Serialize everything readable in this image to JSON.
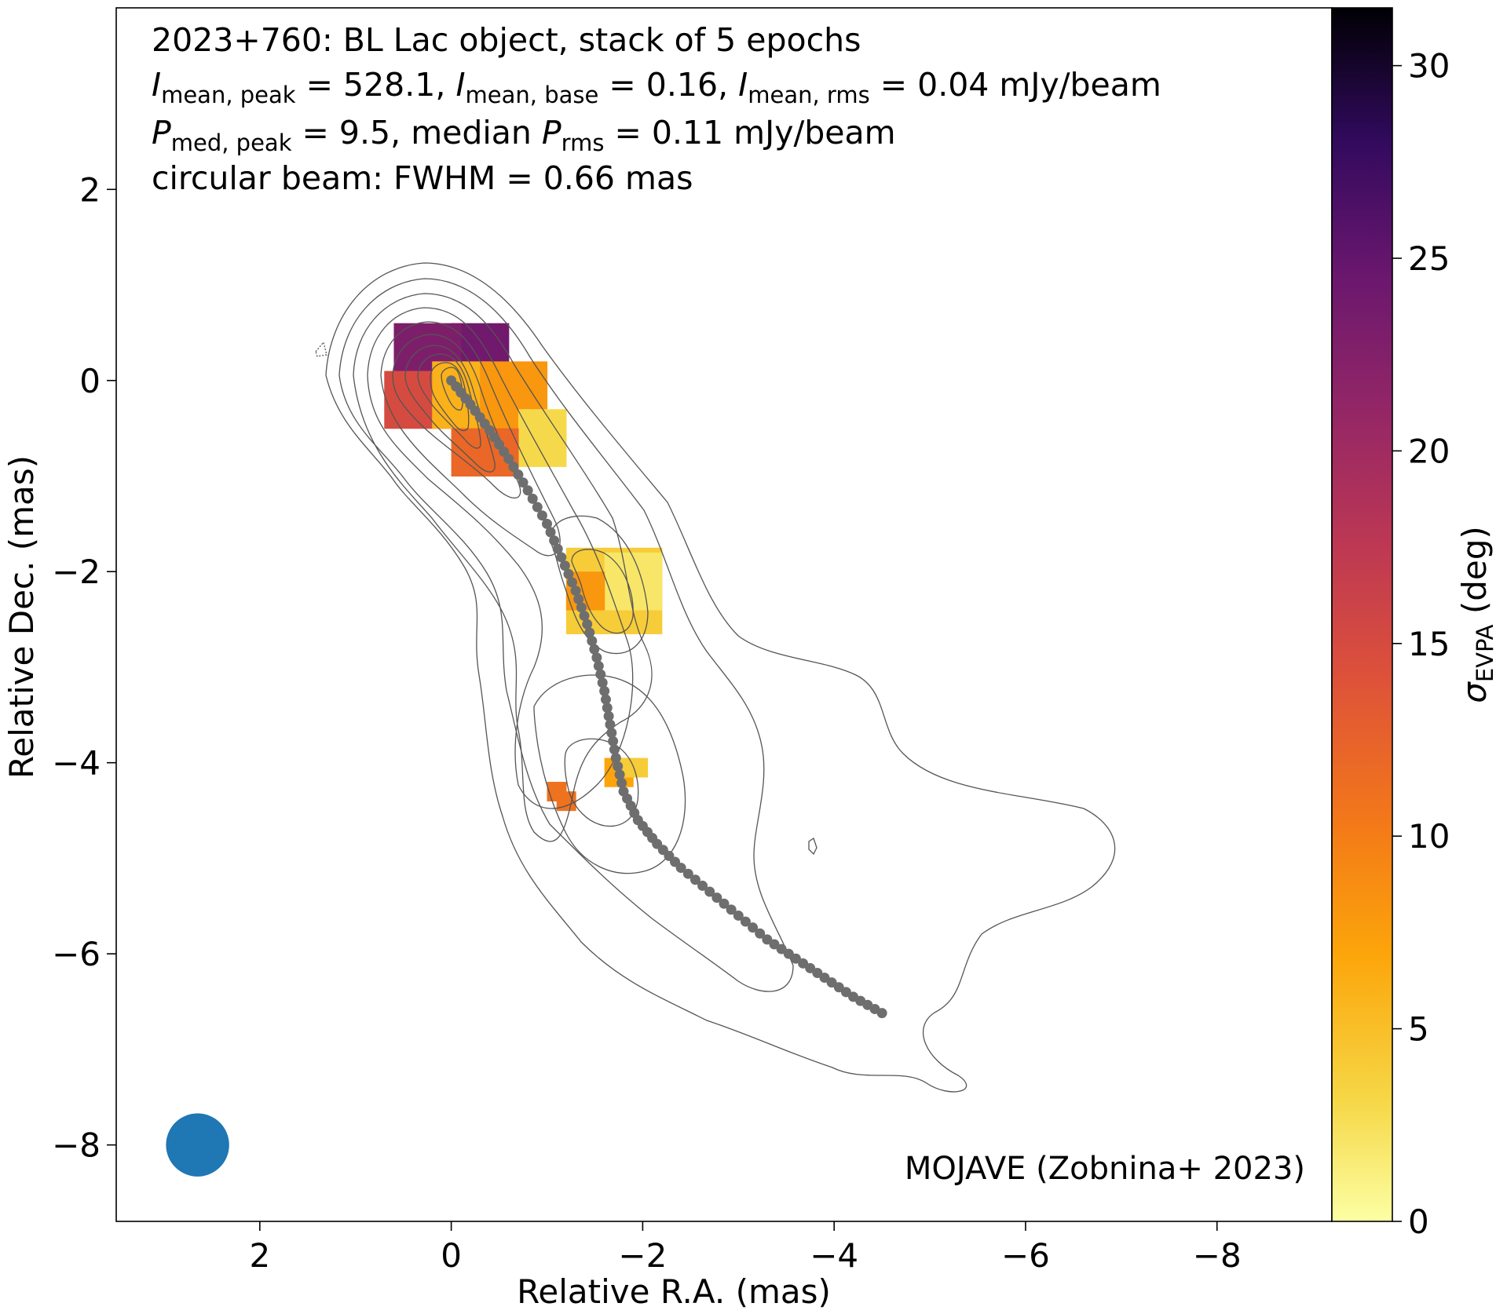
{
  "header": {
    "line1": "2023+760: BL Lac object, stack of 5 epochs",
    "line2": [
      {
        "t": "I",
        "s": "i"
      },
      {
        "t": "mean, peak",
        "s": "sub"
      },
      {
        "t": " = 528.1, "
      },
      {
        "t": "I",
        "s": "i"
      },
      {
        "t": "mean, base",
        "s": "sub"
      },
      {
        "t": " = 0.16, "
      },
      {
        "t": "I",
        "s": "i"
      },
      {
        "t": "mean, rms",
        "s": "sub"
      },
      {
        "t": " = 0.04 mJy/beam"
      }
    ],
    "line3": [
      {
        "t": "P",
        "s": "i"
      },
      {
        "t": "med, peak",
        "s": "sub"
      },
      {
        "t": " = 9.5, median "
      },
      {
        "t": "P",
        "s": "i"
      },
      {
        "t": "rms",
        "s": "sub"
      },
      {
        "t": " = 0.11 mJy/beam"
      }
    ],
    "line4": "circular beam: FWHM = 0.66 mas"
  },
  "credit": "MOJAVE (Zobnina+ 2023)",
  "colors": {
    "ridge": "#6e6e6e",
    "contour": "#555555",
    "beam": "#1f77b4"
  },
  "chart_data": {
    "type": "heatmap",
    "xlabel": "Relative R.A. (mas)",
    "ylabel": "Relative Dec. (mas)",
    "xlim": [
      3.5,
      -9.2
    ],
    "ylim": [
      -8.8,
      3.9
    ],
    "xticks": [
      2,
      0,
      -2,
      -4,
      -6,
      -8
    ],
    "xtick_labels": [
      "2",
      "0",
      "−2",
      "−4",
      "−6",
      "−8"
    ],
    "yticks": [
      2,
      0,
      -2,
      -4,
      -6,
      -8
    ],
    "ytick_labels": [
      "2",
      "0",
      "−2",
      "−4",
      "−6",
      "−8"
    ],
    "colorbar": {
      "label_symbol": "σ",
      "label_sub": "EVPA",
      "label_unit": " (deg)",
      "range": [
        0,
        31.5
      ],
      "ticks": [
        0,
        5,
        10,
        15,
        20,
        25,
        30
      ],
      "tick_labels": [
        "0",
        "5",
        "10",
        "15",
        "20",
        "25",
        "30"
      ],
      "colormap": "inferno_r"
    },
    "beam": {
      "x": 2.65,
      "y": -8.0,
      "fwhm_mas": 0.66
    },
    "ridge_line": {
      "x": [
        0.0,
        -0.2,
        -0.4,
        -0.6,
        -0.8,
        -1.0,
        -1.15,
        -1.3,
        -1.42,
        -1.52,
        -1.6,
        -1.66,
        -1.72,
        -1.8,
        -1.95,
        -2.15,
        -2.4,
        -2.7,
        -3.0,
        -3.3,
        -3.6,
        -3.9,
        -4.2,
        -4.5
      ],
      "y": [
        0.0,
        -0.25,
        -0.52,
        -0.82,
        -1.15,
        -1.5,
        -1.85,
        -2.2,
        -2.55,
        -2.9,
        -3.25,
        -3.6,
        -3.95,
        -4.3,
        -4.6,
        -4.85,
        -5.1,
        -5.35,
        -5.6,
        -5.85,
        -6.05,
        -6.25,
        -6.45,
        -6.62
      ]
    },
    "polarization_pixels": [
      {
        "x_range": [
          0.0,
          -0.5
        ],
        "y_range": [
          0.6,
          0.1
        ],
        "value": 24
      },
      {
        "x_range": [
          0.6,
          0.0
        ],
        "y_range": [
          0.6,
          0.0
        ],
        "value": 23
      },
      {
        "x_range": [
          0.7,
          0.1
        ],
        "y_range": [
          0.1,
          -0.45
        ],
        "value": 15
      },
      {
        "x_range": [
          0.2,
          -0.3
        ],
        "y_range": [
          0.2,
          -0.4
        ],
        "value": 6
      },
      {
        "x_range": [
          -0.3,
          -0.9
        ],
        "y_range": [
          0.2,
          -0.6
        ],
        "value": 8
      },
      {
        "x_range": [
          -0.7,
          -1.1
        ],
        "y_range": [
          -0.3,
          -0.85
        ],
        "value": 3
      },
      {
        "x_range": [
          0.0,
          -0.6
        ],
        "y_range": [
          -0.5,
          -0.9
        ],
        "value": 12
      },
      {
        "x_range": [
          -1.2,
          -2.1
        ],
        "y_range": [
          -1.75,
          -2.6
        ],
        "value": 4
      },
      {
        "x_range": [
          -1.6,
          -2.1
        ],
        "y_range": [
          -1.8,
          -2.3
        ],
        "value": 2
      },
      {
        "x_range": [
          -1.2,
          -1.5
        ],
        "y_range": [
          -2.0,
          -2.3
        ],
        "value": 8
      },
      {
        "x_range": [
          -1.6,
          -1.85
        ],
        "y_range": [
          -3.95,
          -4.15
        ],
        "value": 7
      },
      {
        "x_range": [
          -1.75,
          -1.95
        ],
        "y_range": [
          -3.95,
          -4.05
        ],
        "value": 4
      },
      {
        "x_range": [
          -1.0,
          -1.1
        ],
        "y_range": [
          -4.2,
          -4.3
        ],
        "value": 11
      },
      {
        "x_range": [
          -1.1,
          -1.2
        ],
        "y_range": [
          -4.3,
          -4.45
        ],
        "value": 11
      }
    ]
  }
}
